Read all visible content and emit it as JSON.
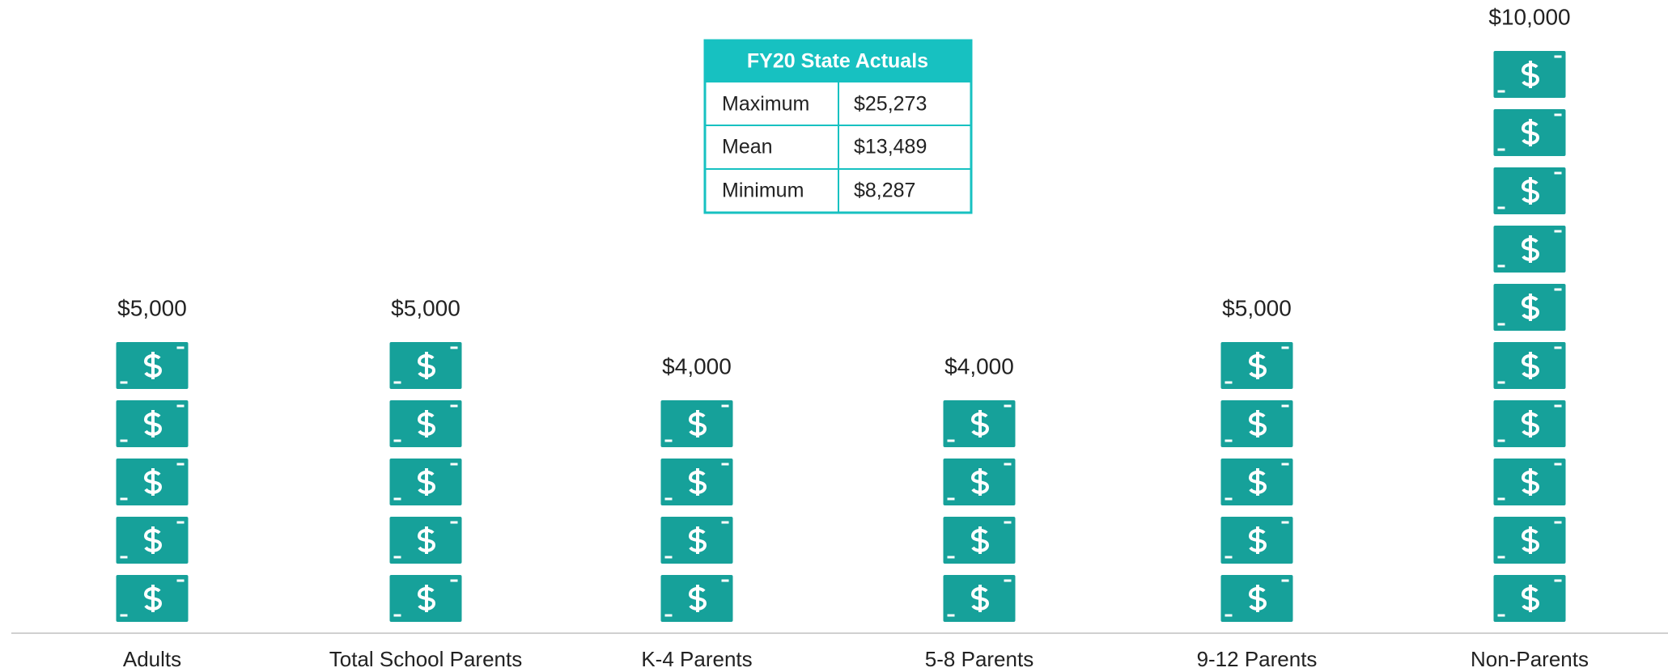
{
  "chart_data": {
    "type": "pictograph",
    "categories": [
      "Adults",
      "Total School Parents",
      "K-4 Parents",
      "5-8 Parents",
      "9-12 Parents",
      "Non-Parents"
    ],
    "values": [
      5000,
      5000,
      4000,
      4000,
      5000,
      10000
    ],
    "value_labels": [
      "$5,000",
      "$5,000",
      "$4,000",
      "$4,000",
      "$5,000",
      "$10,000"
    ],
    "color": "#16a19a"
  },
  "table": {
    "title": "FY20 State Actuals",
    "rows": [
      [
        "Maximum",
        "$25,273"
      ],
      [
        "Mean",
        "$13,489"
      ],
      [
        "Minimum",
        "$8,287"
      ]
    ]
  }
}
